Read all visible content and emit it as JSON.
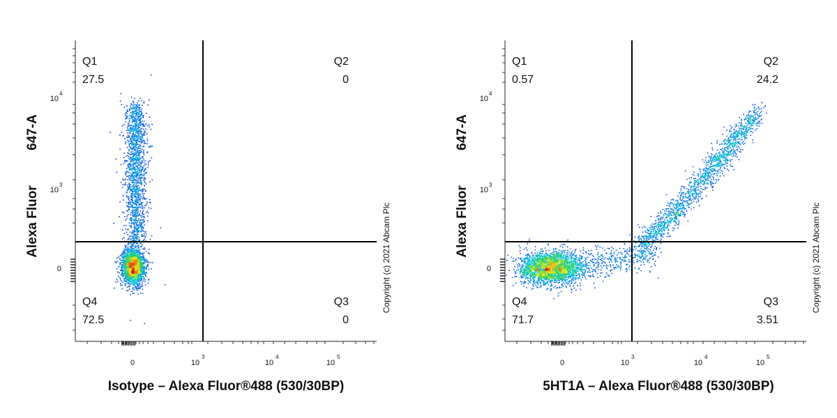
{
  "chart_data": [
    {
      "type": "scatter",
      "subtype": "flow-cytometry-density-dot-plot",
      "title": "",
      "xlabel": "Isotype – Alexa Fluor®488 (530/30BP)",
      "ylabel_parts": [
        "Alexa Fluor",
        "647-A"
      ],
      "x_scale": "biexponential",
      "y_scale": "biexponential",
      "x_ticks": [
        {
          "base": "0",
          "exp": ""
        },
        {
          "base": "10",
          "exp": "3"
        },
        {
          "base": "10",
          "exp": "4"
        },
        {
          "base": "10",
          "exp": "5"
        }
      ],
      "y_ticks": [
        {
          "base": "0",
          "exp": ""
        },
        {
          "base": "10",
          "exp": "3"
        },
        {
          "base": "10",
          "exp": "4"
        }
      ],
      "quadrant_gate": {
        "x": 1400,
        "y": 250
      },
      "quadrants": [
        {
          "name": "Q1",
          "percent": "27.5"
        },
        {
          "name": "Q2",
          "percent": "0"
        },
        {
          "name": "Q3",
          "percent": "0"
        },
        {
          "name": "Q4",
          "percent": "72.5"
        }
      ],
      "populations": [
        {
          "region": "Q4",
          "center_x": 40,
          "center_y": 0,
          "spread": "tight, dense (red core)"
        },
        {
          "region": "Q1",
          "center_x": 40,
          "center_y": 1500,
          "spread": "vertical streak up to ~10^4"
        }
      ],
      "copyright": "Copyright (c) 2021 Abcam Plc"
    },
    {
      "type": "scatter",
      "subtype": "flow-cytometry-density-dot-plot",
      "title": "",
      "xlabel": "5HT1A – Alexa Fluor®488 (530/30BP)",
      "ylabel_parts": [
        "Alexa Fluor",
        "647-A"
      ],
      "x_scale": "biexponential",
      "y_scale": "biexponential",
      "x_ticks": [
        {
          "base": "0",
          "exp": ""
        },
        {
          "base": "10",
          "exp": "3"
        },
        {
          "base": "10",
          "exp": "4"
        },
        {
          "base": "10",
          "exp": "5"
        }
      ],
      "y_ticks": [
        {
          "base": "0",
          "exp": ""
        },
        {
          "base": "10",
          "exp": "3"
        },
        {
          "base": "10",
          "exp": "4"
        }
      ],
      "quadrant_gate": {
        "x": 1400,
        "y": 250
      },
      "quadrants": [
        {
          "name": "Q1",
          "percent": "0.57"
        },
        {
          "name": "Q2",
          "percent": "24.2"
        },
        {
          "name": "Q3",
          "percent": "3.51"
        },
        {
          "name": "Q4",
          "percent": "71.7"
        }
      ],
      "populations": [
        {
          "region": "Q4",
          "center_x": -100,
          "center_y": 0,
          "spread": "dense (red core)"
        },
        {
          "region": "Q3-Q2",
          "center_x": 10000,
          "center_y": 1000,
          "spread": "diagonal tail rising to ~10^4"
        }
      ],
      "copyright": "Copyright (c) 2021 Abcam Plc"
    }
  ]
}
